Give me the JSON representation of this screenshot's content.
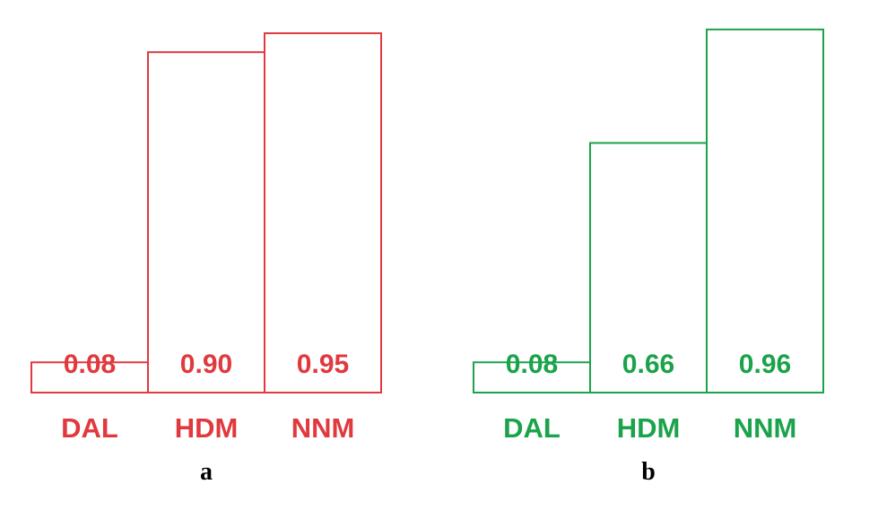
{
  "chart_data": [
    {
      "type": "bar",
      "panel_label": "a",
      "categories": [
        "DAL",
        "HDM",
        "NNM"
      ],
      "values": [
        0.08,
        0.9,
        0.95
      ],
      "value_labels": [
        "0.08",
        "0.90",
        "0.95"
      ],
      "color": "#e0393e",
      "ylim": [
        0,
        1
      ],
      "grid": false
    },
    {
      "type": "bar",
      "panel_label": "b",
      "categories": [
        "DAL",
        "HDM",
        "NNM"
      ],
      "values": [
        0.08,
        0.66,
        0.96
      ],
      "value_labels": [
        "0.08",
        "0.66",
        "0.96"
      ],
      "color": "#1aa34a",
      "ylim": [
        0,
        1
      ],
      "grid": false
    }
  ]
}
